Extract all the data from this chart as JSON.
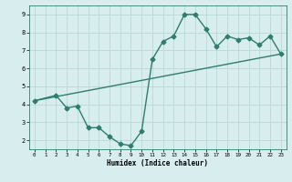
{
  "xlabel": "Humidex (Indice chaleur)",
  "line1_x": [
    0,
    2,
    3,
    4,
    5,
    6,
    7,
    8,
    9,
    10,
    11,
    12,
    13,
    14,
    15,
    16,
    17,
    18,
    19,
    20,
    21,
    22,
    23
  ],
  "line1_y": [
    4.2,
    4.5,
    3.8,
    3.9,
    2.7,
    2.7,
    2.2,
    1.8,
    1.7,
    2.5,
    6.5,
    7.5,
    7.8,
    9.0,
    9.0,
    8.2,
    7.2,
    7.8,
    7.6,
    7.7,
    7.3,
    7.8,
    6.8
  ],
  "line2_x": [
    0,
    23
  ],
  "line2_y": [
    4.2,
    6.8
  ],
  "line_color": "#2e7d6e",
  "bg_color": "#d8eeee",
  "grid_color": "#b8d8d8",
  "xlim": [
    -0.5,
    23.5
  ],
  "ylim": [
    1.5,
    9.5
  ],
  "xticks": [
    0,
    1,
    2,
    3,
    4,
    5,
    6,
    7,
    8,
    9,
    10,
    11,
    12,
    13,
    14,
    15,
    16,
    17,
    18,
    19,
    20,
    21,
    22,
    23
  ],
  "yticks": [
    2,
    3,
    4,
    5,
    6,
    7,
    8,
    9
  ],
  "marker": "D",
  "markersize": 2.5,
  "linewidth": 1.0
}
